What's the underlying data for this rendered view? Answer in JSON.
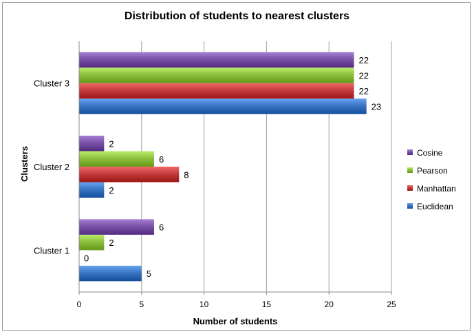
{
  "chart_data": {
    "type": "bar",
    "orientation": "horizontal",
    "title": "Distribution of students to nearest clusters",
    "xlabel": "Number of students",
    "ylabel": "Clusters",
    "xlim": [
      0,
      25
    ],
    "xticks": [
      0,
      5,
      10,
      15,
      20,
      25
    ],
    "grid": true,
    "legend_position": "right",
    "categories": [
      "Cluster 1",
      "Cluster 2",
      "Cluster 3"
    ],
    "series": [
      {
        "name": "Euclidean",
        "color": "#3a76c4",
        "values": [
          5,
          2,
          23
        ]
      },
      {
        "name": "Manhattan",
        "color": "#c43c3c",
        "values": [
          0,
          8,
          22
        ]
      },
      {
        "name": "Pearson",
        "color": "#8cc03e",
        "values": [
          2,
          6,
          22
        ]
      },
      {
        "name": "Cosine",
        "color": "#7a52a8",
        "values": [
          6,
          2,
          22
        ]
      }
    ]
  }
}
